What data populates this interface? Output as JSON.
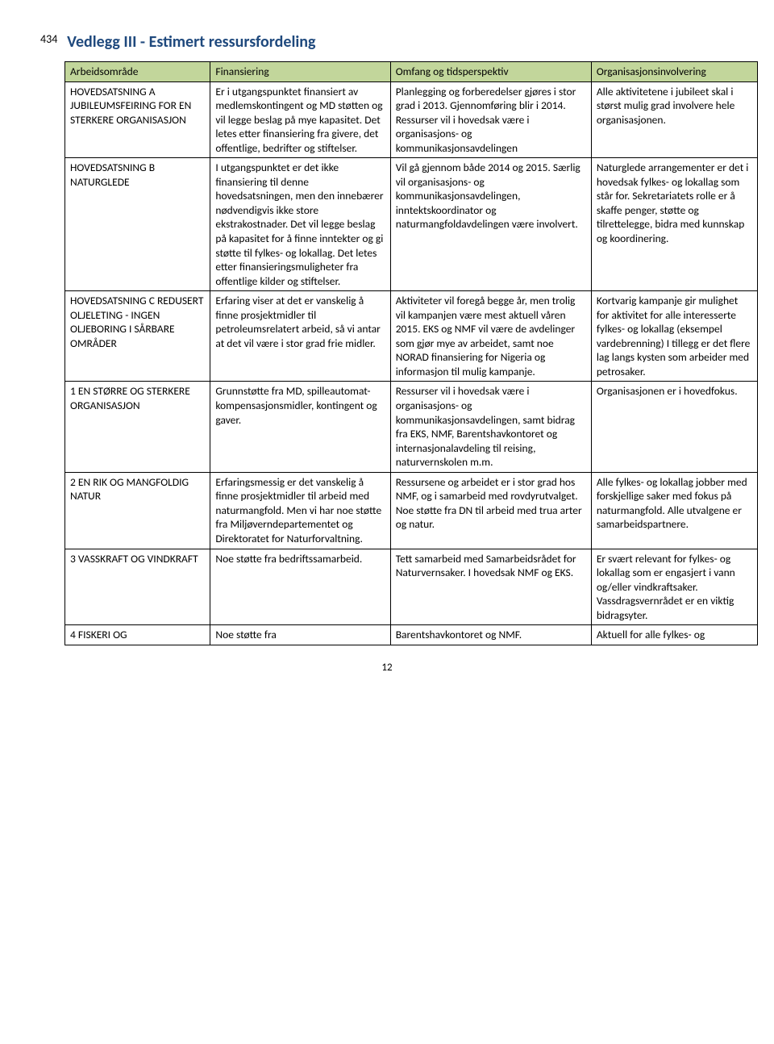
{
  "lineNumber": "434",
  "title": "Vedlegg III - Estimert ressursfordeling",
  "headers": {
    "col1": "Arbeidsområde",
    "col2": "Finansiering",
    "col3": "Omfang og tidsperspektiv",
    "col4": "Organisasjonsinvolvering"
  },
  "rows": [
    {
      "c1": "HOVEDSATSNING A JUBILEUMSFEIRING FOR EN STERKERE ORGANISASJON",
      "c2": "Er i utgangspunktet finansiert av medlemskontingent og MD støtten og vil legge beslag på mye kapasitet. Det letes etter finansiering fra givere, det offentlige, bedrifter og stiftelser.",
      "c3": "Planlegging og forberedelser gjøres i stor grad i 2013. Gjennomføring blir i 2014. Ressurser vil i hovedsak være i organisasjons- og kommunikasjonsavdelingen",
      "c4": "Alle aktivitetene i jubileet skal i størst mulig grad involvere hele organisasjonen."
    },
    {
      "c1": "HOVEDSATSNING B NATURGLEDE",
      "c2": "I utgangspunktet er det ikke finansiering til denne hovedsatsningen, men den innebærer nødvendigvis ikke store ekstrakostnader. Det vil legge beslag på kapasitet for å finne inntekter og gi støtte til fylkes- og lokallag. Det letes etter finansieringsmuligheter fra offentlige kilder og stiftelser.",
      "c3": "Vil gå gjennom både 2014 og 2015. Særlig vil organisasjons- og kommunikasjonsavdelingen, inntektskoordinator og naturmangfoldavdelingen være involvert.",
      "c4": "Naturglede arrangementer er det i hovedsak fylkes- og lokallag som står for. Sekretariatets rolle er å skaffe penger, støtte og tilrettelegge, bidra med kunnskap og koordinering."
    },
    {
      "c1": "HOVEDSATSNING C REDUSERT OLJELETING - INGEN OLJEBORING I SÅRBARE OMRÅDER",
      "c2": "Erfaring viser at det er vanskelig å finne prosjektmidler til petroleumsrelatert arbeid, så vi antar at det vil være i stor grad frie midler.",
      "c3": "Aktiviteter vil foregå begge år, men trolig vil kampanjen være mest aktuell våren 2015. EKS og NMF vil være de avdelinger som gjør mye av arbeidet, samt noe NORAD finansiering for Nigeria og informasjon til mulig kampanje.",
      "c4": "Kortvarig kampanje gir mulighet for aktivitet for alle interesserte fylkes- og lokallag (eksempel vardebrenning) I tillegg er det flere lag langs kysten som arbeider med petrosaker."
    },
    {
      "c1": "1 EN STØRRE OG STERKERE ORGANISASJON",
      "c2": "Grunnstøtte fra MD, spilleautomat-kompensasjonsmidler, kontingent og gaver.",
      "c3": "Ressurser vil i hovedsak være i organisasjons- og kommunikasjonsavdelingen, samt bidrag fra EKS, NMF, Barentshavkontoret og internasjonalavdeling til reising, naturvernskolen m.m.",
      "c4": "Organisasjonen er i hovedfokus."
    },
    {
      "c1": "2 EN RIK OG MANGFOLDIG NATUR",
      "c2": "Erfaringsmessig er det vanskelig å finne prosjektmidler til arbeid med naturmangfold. Men vi har noe støtte fra Miljøverndepartementet og Direktoratet for Naturforvaltning.",
      "c3": "Ressursene og arbeidet er i stor grad hos NMF, og i samarbeid med rovdyrutvalget. Noe støtte fra DN til arbeid med trua arter og natur.",
      "c4": "Alle fylkes- og lokallag jobber med forskjellige saker med fokus på naturmangfold. Alle utvalgene er samarbeidspartnere."
    },
    {
      "c1": "3 VASSKRAFT OG VINDKRAFT",
      "c2": "Noe støtte fra bedriftssamarbeid.",
      "c3": "Tett samarbeid med Samarbeidsrådet for Naturvernsaker. I hovedsak NMF og EKS.",
      "c4": "Er svært relevant for fylkes- og lokallag som er engasjert i vann og/eller vindkraftsaker. Vassdragsvernrådet er en viktig bidragsyter."
    },
    {
      "c1": "4 FISKERI OG",
      "c2": "Noe støtte fra",
      "c3": "Barentshavkontoret og NMF.",
      "c4": "Aktuell for alle fylkes- og"
    }
  ],
  "pageNumber": "12",
  "colors": {
    "titleColor": "#1f497d",
    "headerBg": "#c2d69b",
    "border": "#000000",
    "text": "#000000",
    "background": "#ffffff"
  }
}
